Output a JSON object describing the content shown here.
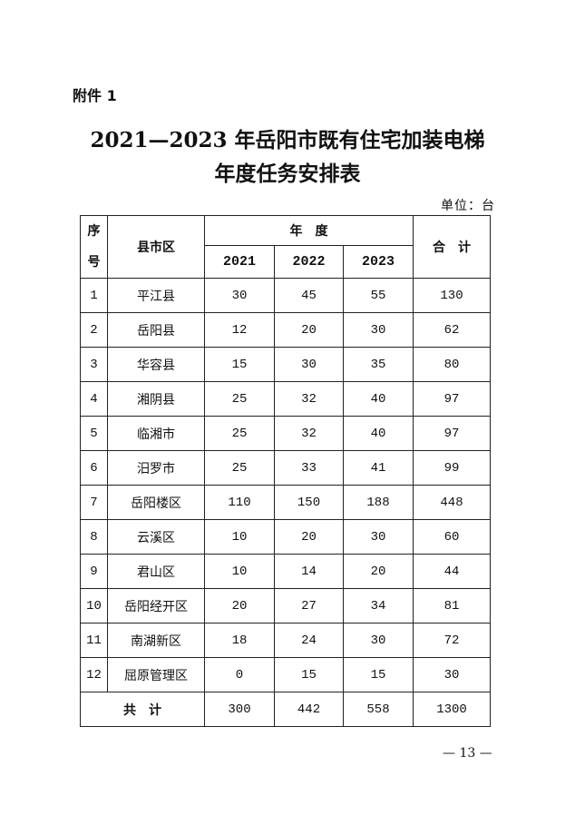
{
  "attachment_label": "附件 1",
  "title_line1": "2021—2023 年岳阳市既有住宅加装电梯",
  "title_line2": "年度任务安排表",
  "unit": "单位：台",
  "table": {
    "headers": {
      "seq": "序号",
      "region": "县市区",
      "year_group": "年　度",
      "years": [
        "2021",
        "2022",
        "2023"
      ],
      "total": "合　计"
    },
    "rows": [
      {
        "seq": "1",
        "region": "平江县",
        "v2021": "30",
        "v2022": "45",
        "v2023": "55",
        "total": "130"
      },
      {
        "seq": "2",
        "region": "岳阳县",
        "v2021": "12",
        "v2022": "20",
        "v2023": "30",
        "total": "62"
      },
      {
        "seq": "3",
        "region": "华容县",
        "v2021": "15",
        "v2022": "30",
        "v2023": "35",
        "total": "80"
      },
      {
        "seq": "4",
        "region": "湘阴县",
        "v2021": "25",
        "v2022": "32",
        "v2023": "40",
        "total": "97"
      },
      {
        "seq": "5",
        "region": "临湘市",
        "v2021": "25",
        "v2022": "32",
        "v2023": "40",
        "total": "97"
      },
      {
        "seq": "6",
        "region": "汨罗市",
        "v2021": "25",
        "v2022": "33",
        "v2023": "41",
        "total": "99"
      },
      {
        "seq": "7",
        "region": "岳阳楼区",
        "v2021": "110",
        "v2022": "150",
        "v2023": "188",
        "total": "448"
      },
      {
        "seq": "8",
        "region": "云溪区",
        "v2021": "10",
        "v2022": "20",
        "v2023": "30",
        "total": "60"
      },
      {
        "seq": "9",
        "region": "君山区",
        "v2021": "10",
        "v2022": "14",
        "v2023": "20",
        "total": "44"
      },
      {
        "seq": "10",
        "region": "岳阳经开区",
        "v2021": "20",
        "v2022": "27",
        "v2023": "34",
        "total": "81"
      },
      {
        "seq": "11",
        "region": "南湖新区",
        "v2021": "18",
        "v2022": "24",
        "v2023": "30",
        "total": "72"
      },
      {
        "seq": "12",
        "region": "屈原管理区",
        "v2021": "0",
        "v2022": "15",
        "v2023": "15",
        "total": "30"
      }
    ],
    "sum_row": {
      "label": "共　计",
      "v2021": "300",
      "v2022": "442",
      "v2023": "558",
      "total": "1300"
    }
  },
  "page_number": "— 13 —"
}
